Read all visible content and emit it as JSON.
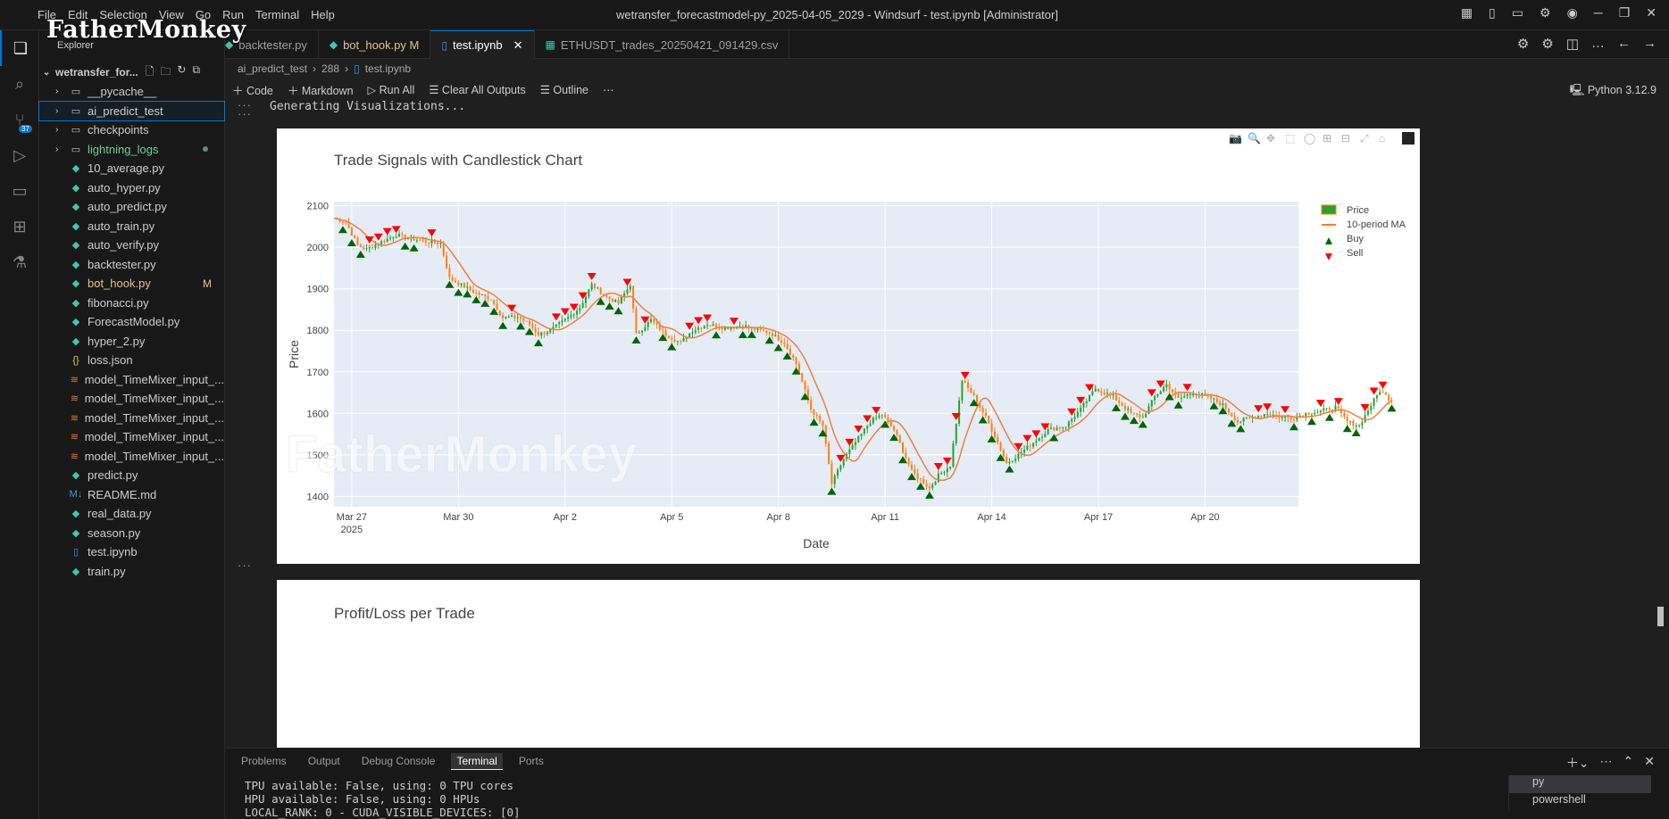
{
  "watermark": "FatherMonkey",
  "menu": [
    "File",
    "Edit",
    "Selection",
    "View",
    "Go",
    "Run",
    "Terminal",
    "Help"
  ],
  "window_title": "wetransfer_forecastmodel-py_2025-04-05_2029 - Windsurf - test.ipynb [Administrator]",
  "activity_badge": "37",
  "sidebar": {
    "title": "Explorer",
    "root": "wetransfer_for...",
    "items": [
      {
        "label": "__pycache__",
        "kind": "folder",
        "color": "#cccccc"
      },
      {
        "label": "ai_predict_test",
        "kind": "folder",
        "color": "#cccccc",
        "selected": true
      },
      {
        "label": "checkpoints",
        "kind": "folder",
        "color": "#cccccc"
      },
      {
        "label": "lightning_logs",
        "kind": "folder",
        "color": "#73c991",
        "dot": true
      },
      {
        "label": "10_average.py",
        "kind": "py",
        "color": "#cccccc"
      },
      {
        "label": "auto_hyper.py",
        "kind": "py",
        "color": "#cccccc"
      },
      {
        "label": "auto_predict.py",
        "kind": "py",
        "color": "#cccccc"
      },
      {
        "label": "auto_train.py",
        "kind": "py",
        "color": "#cccccc"
      },
      {
        "label": "auto_verify.py",
        "kind": "py",
        "color": "#cccccc"
      },
      {
        "label": "backtester.py",
        "kind": "py",
        "color": "#cccccc"
      },
      {
        "label": "bot_hook.py",
        "kind": "py",
        "color": "#e2c08d",
        "mod": "M"
      },
      {
        "label": "fibonacci.py",
        "kind": "py",
        "color": "#cccccc"
      },
      {
        "label": "ForecastModel.py",
        "kind": "py",
        "color": "#cccccc"
      },
      {
        "label": "hyper_2.py",
        "kind": "py",
        "color": "#cccccc"
      },
      {
        "label": "loss.json",
        "kind": "json",
        "color": "#cccccc"
      },
      {
        "label": "model_TimeMixer_input_...",
        "kind": "rss",
        "color": "#cccccc"
      },
      {
        "label": "model_TimeMixer_input_...",
        "kind": "rss",
        "color": "#cccccc"
      },
      {
        "label": "model_TimeMixer_input_...",
        "kind": "rss",
        "color": "#cccccc"
      },
      {
        "label": "model_TimeMixer_input_...",
        "kind": "rss",
        "color": "#cccccc"
      },
      {
        "label": "model_TimeMixer_input_...",
        "kind": "rss",
        "color": "#cccccc"
      },
      {
        "label": "predict.py",
        "kind": "py",
        "color": "#cccccc"
      },
      {
        "label": "README.md",
        "kind": "md",
        "color": "#cccccc"
      },
      {
        "label": "real_data.py",
        "kind": "py",
        "color": "#cccccc"
      },
      {
        "label": "season.py",
        "kind": "py",
        "color": "#cccccc"
      },
      {
        "label": "test.ipynb",
        "kind": "nb",
        "color": "#cccccc"
      },
      {
        "label": "train.py",
        "kind": "py",
        "color": "#cccccc"
      }
    ]
  },
  "tabs": [
    {
      "label": "backtester.py",
      "active": false
    },
    {
      "label": "bot_hook.py M",
      "active": false
    },
    {
      "label": "test.ipynb",
      "active": true
    },
    {
      "label": "ETHUSDT_trades_20250421_091429.csv",
      "active": false
    }
  ],
  "breadcrumb": [
    "ai_predict_test",
    "288",
    "test.ipynb"
  ],
  "toolbar": {
    "code": "Code",
    "markdown": "Markdown",
    "run_all": "Run All",
    "clear_outputs": "Clear All Outputs",
    "outline": "Outline",
    "kernel": "Python 3.12.9"
  },
  "output_text": "Generating Visualizations...",
  "chart_data": [
    {
      "type": "candlestick",
      "title": "Trade Signals with Candlestick Chart",
      "xlabel": "Date",
      "ylabel": "Price",
      "x_ticks": [
        "Mar 27",
        "Mar 30",
        "Apr 2",
        "Apr 5",
        "Apr 8",
        "Apr 11",
        "Apr 14",
        "Apr 17",
        "Apr 20"
      ],
      "x_year_label": "2025",
      "x_range": [
        "2025-03-26T12:00",
        "2025-04-22T15:00"
      ],
      "y_ticks": [
        1400,
        1500,
        1600,
        1700,
        1800,
        1900,
        2000,
        2100
      ],
      "ylim": [
        1375,
        2110
      ],
      "legend_position": "right",
      "series": [
        {
          "name": "Price",
          "color": "#2ca02c"
        },
        {
          "name": "10-period MA",
          "color": "#f08040"
        },
        {
          "name": "Buy",
          "color": "#006400"
        },
        {
          "name": "Sell",
          "color": "#ff0000"
        }
      ],
      "price_path": [
        [
          "03-26T12",
          2070
        ],
        [
          "03-26T20",
          2060
        ],
        [
          "03-27T04",
          2005
        ],
        [
          "03-27T10",
          1995
        ],
        [
          "03-27T18",
          2010
        ],
        [
          "03-28T06",
          2030
        ],
        [
          "03-28T14",
          2022
        ],
        [
          "03-29T00",
          2015
        ],
        [
          "03-29T12",
          2010
        ],
        [
          "03-29T18",
          1925
        ],
        [
          "03-30T04",
          1905
        ],
        [
          "03-30T12",
          1890
        ],
        [
          "03-30T22",
          1875
        ],
        [
          "03-31T06",
          1830
        ],
        [
          "03-31T16",
          1832
        ],
        [
          "04-01T00",
          1815
        ],
        [
          "04-01T06",
          1790
        ],
        [
          "04-01T14",
          1800
        ],
        [
          "04-02T00",
          1825
        ],
        [
          "04-02T10",
          1855
        ],
        [
          "04-02T18",
          1910
        ],
        [
          "04-03T04",
          1880
        ],
        [
          "04-03T12",
          1865
        ],
        [
          "04-03T20",
          1910
        ],
        [
          "04-04T00",
          1790
        ],
        [
          "04-04T10",
          1825
        ],
        [
          "04-04T20",
          1790
        ],
        [
          "04-05T06",
          1770
        ],
        [
          "04-05T14",
          1800
        ],
        [
          "04-06T00",
          1815
        ],
        [
          "04-06T12",
          1805
        ],
        [
          "04-07T00",
          1812
        ],
        [
          "04-07T10",
          1800
        ],
        [
          "04-07T18",
          1795
        ],
        [
          "04-08T04",
          1770
        ],
        [
          "04-08T12",
          1720
        ],
        [
          "04-08T22",
          1610
        ],
        [
          "04-09T06",
          1570
        ],
        [
          "04-09T12",
          1430
        ],
        [
          "04-09T20",
          1490
        ],
        [
          "04-10T06",
          1540
        ],
        [
          "04-10T14",
          1580
        ],
        [
          "04-10T22",
          1598
        ],
        [
          "04-11T06",
          1560
        ],
        [
          "04-11T12",
          1510
        ],
        [
          "04-11T18",
          1460
        ],
        [
          "04-12T00",
          1440
        ],
        [
          "04-12T06",
          1420
        ],
        [
          "04-12T12",
          1450
        ],
        [
          "04-12T20",
          1475
        ],
        [
          "04-13T04",
          1680
        ],
        [
          "04-13T12",
          1640
        ],
        [
          "04-13T20",
          1590
        ],
        [
          "04-14T04",
          1530
        ],
        [
          "04-14T10",
          1480
        ],
        [
          "04-14T18",
          1500
        ],
        [
          "04-15T04",
          1530
        ],
        [
          "04-15T14",
          1560
        ],
        [
          "04-16T02",
          1570
        ],
        [
          "04-16T12",
          1610
        ],
        [
          "04-16T22",
          1660
        ],
        [
          "04-17T10",
          1640
        ],
        [
          "04-17T22",
          1600
        ],
        [
          "04-18T06",
          1590
        ],
        [
          "04-18T14",
          1640
        ],
        [
          "04-18T22",
          1670
        ],
        [
          "04-19T06",
          1635
        ],
        [
          "04-19T16",
          1650
        ],
        [
          "04-20T02",
          1640
        ],
        [
          "04-20T12",
          1620
        ],
        [
          "04-20T22",
          1580
        ],
        [
          "04-21T08",
          1590
        ],
        [
          "04-21T18",
          1600
        ],
        [
          "04-22T04",
          1590
        ],
        [
          "04-22T12",
          1590
        ],
        [
          "04-22T20",
          1600
        ],
        [
          "04-23T06",
          1605
        ],
        [
          "04-23T16",
          1615
        ],
        [
          "04-24T00",
          1580
        ],
        [
          "04-24T08",
          1570
        ],
        [
          "04-24T16",
          1620
        ],
        [
          "04-24T22",
          1655
        ],
        [
          "04-25T06",
          1630
        ]
      ]
    },
    {
      "type": "bar",
      "title": "Profit/Loss per Trade"
    }
  ],
  "panel": {
    "tabs": [
      "Problems",
      "Output",
      "Debug Console",
      "Terminal",
      "Ports"
    ],
    "active_tab": "Terminal",
    "lines": [
      "TPU available: False, using: 0 TPU cores",
      "HPU available: False, using: 0 HPUs",
      "LOCAL_RANK: 0 - CUDA_VISIBLE_DEVICES: [0]"
    ],
    "shells": [
      "py",
      "powershell"
    ]
  }
}
